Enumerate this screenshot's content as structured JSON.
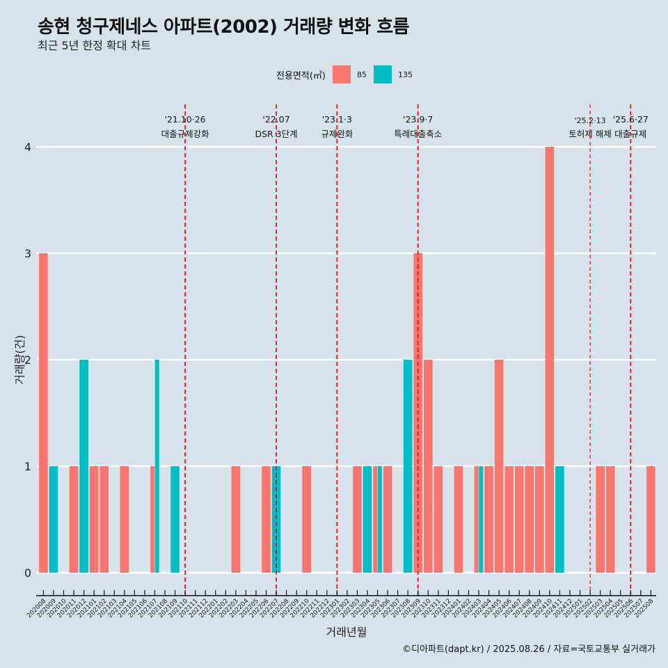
{
  "header": {
    "title": "송현 청구제네스 아파트(2002) 거래량 변화 흐름",
    "subtitle": "최근 5년 한정 확대 차트"
  },
  "legend": {
    "title": "전용면적(㎡)",
    "items": [
      {
        "label": "85",
        "color": "#f8766d"
      },
      {
        "label": "135",
        "color": "#00bfc4"
      }
    ]
  },
  "footer": "©디아파트(dapt.kr) / 2025.08.26 / 자료=국토교통부 실거래가",
  "chart_data": {
    "type": "bar",
    "title": "송현 청구제네스 아파트(2002) 거래량 변화 흐름",
    "subtitle": "최근 5년 한정 확대 차트",
    "xlabel": "거래년월",
    "ylabel": "거래량(건)",
    "ylim": [
      0,
      4
    ],
    "yticks": [
      "0",
      "1",
      "2",
      "3",
      "4"
    ],
    "grid": "horizontal",
    "legend_position": "top",
    "categories": [
      "202008",
      "202009",
      "202010",
      "202011",
      "202012",
      "202101",
      "202102",
      "202103",
      "202104",
      "202105",
      "202106",
      "202107",
      "202108",
      "202109",
      "202110",
      "202111",
      "202112",
      "202201",
      "202202",
      "202203",
      "202204",
      "202205",
      "202206",
      "202207",
      "202208",
      "202209",
      "202210",
      "202211",
      "202212",
      "202301",
      "202302",
      "202303",
      "202304",
      "202305",
      "202306",
      "202307",
      "202308",
      "202309",
      "202310",
      "202311",
      "202312",
      "202401",
      "202402",
      "202403",
      "202404",
      "202405",
      "202406",
      "202407",
      "202408",
      "202409",
      "202410",
      "202411",
      "202412",
      "202501",
      "202502",
      "202503",
      "202504",
      "202505",
      "202506",
      "202507",
      "202508"
    ],
    "series": [
      {
        "name": "85",
        "color": "#f8766d",
        "values": [
          3,
          0,
          0,
          1,
          0,
          1,
          1,
          0,
          1,
          0,
          0,
          1,
          0,
          0,
          0,
          0,
          0,
          0,
          0,
          1,
          0,
          0,
          1,
          0,
          0,
          0,
          1,
          0,
          0,
          0,
          0,
          1,
          0,
          1,
          1,
          0,
          0,
          3,
          2,
          1,
          0,
          1,
          0,
          1,
          1,
          2,
          1,
          1,
          1,
          1,
          4,
          0,
          0,
          0,
          0,
          1,
          1,
          0,
          0,
          0,
          1
        ]
      },
      {
        "name": "135",
        "color": "#00bfc4",
        "values": [
          0,
          1,
          0,
          0,
          2,
          0,
          0,
          0,
          0,
          0,
          0,
          2,
          0,
          1,
          0,
          0,
          0,
          0,
          0,
          0,
          0,
          0,
          0,
          1,
          0,
          0,
          0,
          0,
          0,
          0,
          0,
          0,
          1,
          1,
          0,
          0,
          2,
          0,
          0,
          0,
          0,
          0,
          0,
          1,
          0,
          0,
          0,
          0,
          0,
          0,
          0,
          1,
          0,
          0,
          0,
          0,
          0,
          0,
          0,
          0,
          0
        ]
      }
    ],
    "events": [
      {
        "month": "202110",
        "date": "'21.10·26",
        "label": "대출규제강화"
      },
      {
        "month": "202207",
        "date": "'22.07",
        "label": "DSR 3단계"
      },
      {
        "month": "202301",
        "date": "'23.1·3",
        "label": "규제완화"
      },
      {
        "month": "202309",
        "date": "'23.9·7",
        "label": "특례대출축소"
      },
      {
        "month": "202502",
        "date": "'25.2·13",
        "label": "토허제 해제"
      },
      {
        "month": "202506",
        "date": "'25.6·27",
        "label": "대출규제"
      }
    ],
    "event_line_color": "#e8141c"
  }
}
